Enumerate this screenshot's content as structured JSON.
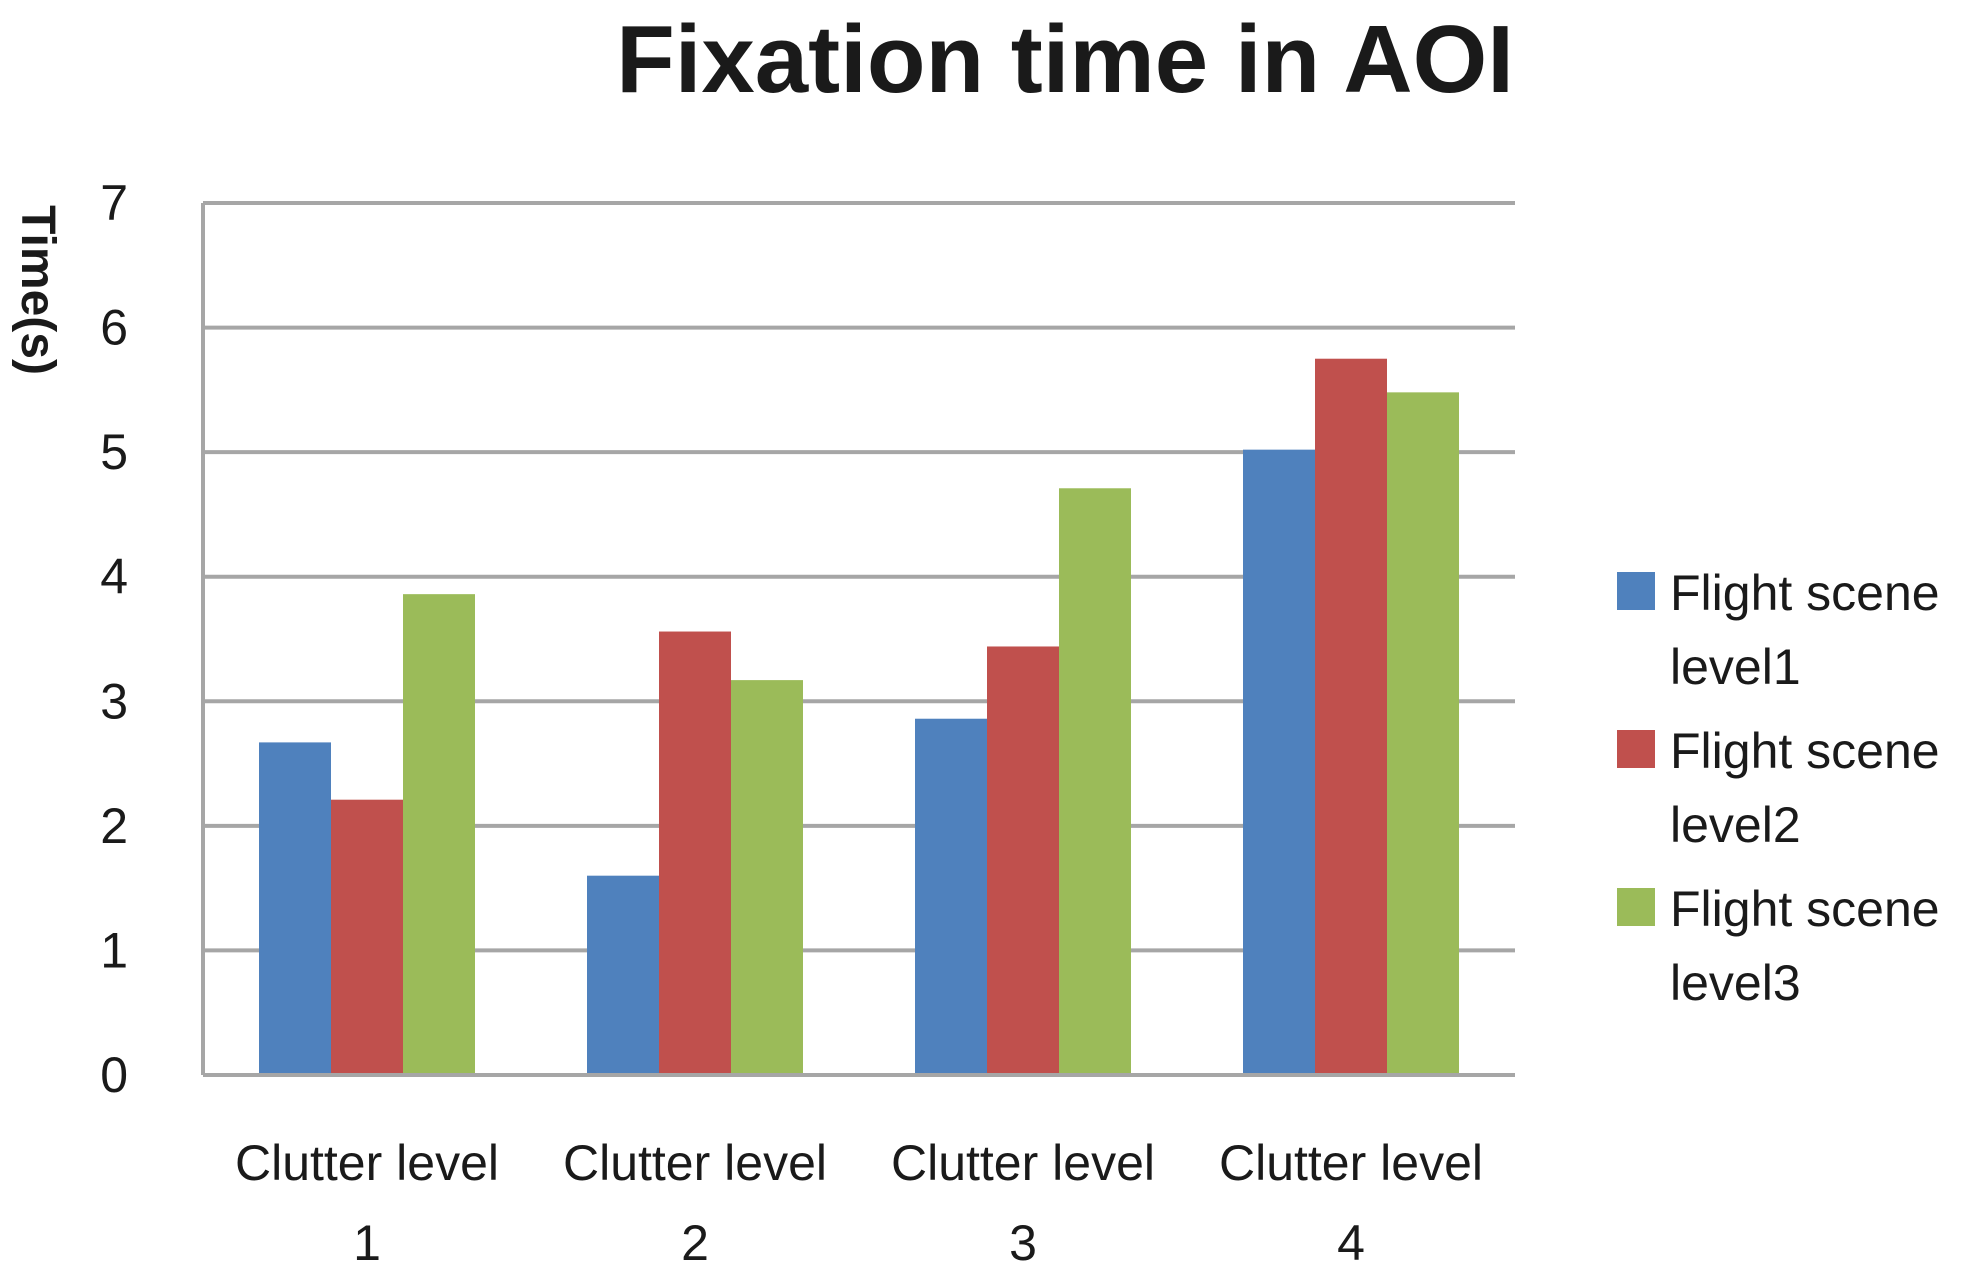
{
  "chart_data": {
    "type": "bar",
    "title": "Fixation time in AOI",
    "xlabel": "",
    "ylabel": "Time(s)",
    "ylim": [
      0,
      7
    ],
    "yticks": [
      "0",
      "1",
      "2",
      "3",
      "4",
      "5",
      "6",
      "7"
    ],
    "grid": true,
    "legend_placement": "right",
    "categories": [
      [
        "Clutter level",
        "1"
      ],
      [
        "Clutter level",
        "2"
      ],
      [
        "Clutter level",
        "3"
      ],
      [
        "Clutter level",
        "4"
      ]
    ],
    "series": [
      {
        "name": [
          "Flight scene",
          "level1"
        ],
        "color": "#4f81bd",
        "values": [
          2.67,
          1.6,
          2.86,
          5.02
        ]
      },
      {
        "name": [
          "Flight scene",
          "level2"
        ],
        "color": "#c0504d",
        "values": [
          2.21,
          3.56,
          3.44,
          5.75
        ]
      },
      {
        "name": [
          "Flight scene",
          "level3"
        ],
        "color": "#9bbb59",
        "values": [
          3.86,
          3.17,
          4.71,
          5.48
        ]
      }
    ]
  }
}
